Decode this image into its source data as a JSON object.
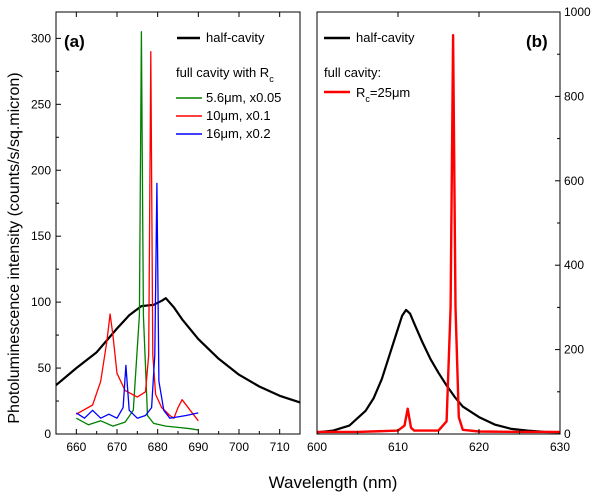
{
  "figure": {
    "xlabel": "Wavelength (nm)",
    "ylabel": "Photoluminescence intensity (counts/s/sq.micron)"
  },
  "chart_data": [
    {
      "panel": "(a)",
      "type": "line",
      "xlim": [
        655,
        715
      ],
      "ylim": [
        0,
        320
      ],
      "xticks": [
        660,
        670,
        680,
        690,
        700,
        710
      ],
      "yticks": [
        0,
        50,
        100,
        150,
        200,
        250,
        300
      ],
      "legend": {
        "placement": "top-right",
        "header": "full cavity with R",
        "header_sub": "c",
        "entries": [
          "half-cavity",
          "5.6μm, x0.05",
          "10μm, x0.1",
          "16μm, x0.2"
        ]
      },
      "series": [
        {
          "name": "half-cavity",
          "color": "#000000",
          "x": [
            655,
            660,
            665,
            670,
            673,
            676,
            679,
            681,
            682,
            684,
            686,
            690,
            695,
            700,
            705,
            710,
            715
          ],
          "y": [
            37,
            50,
            62,
            80,
            90,
            97,
            98,
            101,
            103,
            96,
            87,
            72,
            57,
            45,
            36,
            29,
            24
          ]
        },
        {
          "name": "5.6μm, x0.05",
          "color": "#008000",
          "x": [
            660,
            663,
            666,
            669,
            672,
            674,
            675.5,
            676,
            676.5,
            677.5,
            679,
            682,
            685,
            688,
            690
          ],
          "y": [
            12,
            7,
            10,
            6,
            9,
            18,
            90,
            305,
            90,
            14,
            8,
            6,
            5,
            4,
            3
          ]
        },
        {
          "name": "10μm, x0.1",
          "color": "#ff0000",
          "x": [
            660,
            664,
            666,
            667.5,
            668.3,
            669,
            670,
            672,
            675,
            677,
            677.8,
            678.3,
            678.8,
            679.5,
            681,
            683,
            684,
            685,
            686,
            688,
            690
          ],
          "y": [
            15,
            22,
            40,
            70,
            91,
            75,
            46,
            33,
            28,
            32,
            60,
            290,
            60,
            30,
            20,
            14,
            12,
            20,
            26,
            18,
            10
          ]
        },
        {
          "name": "16μm, x0.2",
          "color": "#0000ff",
          "x": [
            660,
            662,
            664,
            666,
            668,
            670,
            671.5,
            672.2,
            673,
            675,
            677,
            678.5,
            679.3,
            679.8,
            680.3,
            681.5,
            683,
            685,
            687,
            690
          ],
          "y": [
            16,
            12,
            18,
            12,
            15,
            12,
            20,
            52,
            18,
            12,
            14,
            20,
            60,
            190,
            40,
            18,
            12,
            13,
            14,
            16
          ]
        }
      ]
    },
    {
      "panel": "(b)",
      "type": "line",
      "xlim": [
        600,
        630
      ],
      "ylim": [
        0,
        1000
      ],
      "xticks": [
        600,
        610,
        620,
        630
      ],
      "yticks": [
        0,
        200,
        400,
        600,
        800,
        1000
      ],
      "legend": {
        "placement": "top-left",
        "header": "full cavity:",
        "entries": [
          "half-cavity",
          "R",
          "c",
          "=25μm"
        ]
      },
      "series": [
        {
          "name": "half-cavity",
          "color": "#000000",
          "x": [
            600,
            602,
            604,
            606,
            607,
            608,
            609,
            610,
            610.5,
            611,
            611.5,
            612,
            613,
            614,
            615,
            616,
            617,
            618,
            620,
            622,
            624,
            626,
            628,
            630
          ],
          "y": [
            4,
            8,
            20,
            55,
            85,
            130,
            190,
            250,
            280,
            294,
            285,
            262,
            218,
            178,
            145,
            115,
            88,
            65,
            40,
            22,
            12,
            8,
            5,
            4
          ]
        },
        {
          "name": "R_c=25μm",
          "color": "#ff0000",
          "x": [
            600,
            605,
            610,
            610.8,
            611.2,
            611.6,
            612,
            615,
            616,
            616.5,
            616.8,
            617.1,
            617.5,
            618,
            620,
            625,
            630
          ],
          "y": [
            5,
            5,
            8,
            20,
            60,
            15,
            8,
            8,
            30,
            300,
            945,
            300,
            40,
            10,
            6,
            5,
            5
          ]
        }
      ]
    }
  ]
}
